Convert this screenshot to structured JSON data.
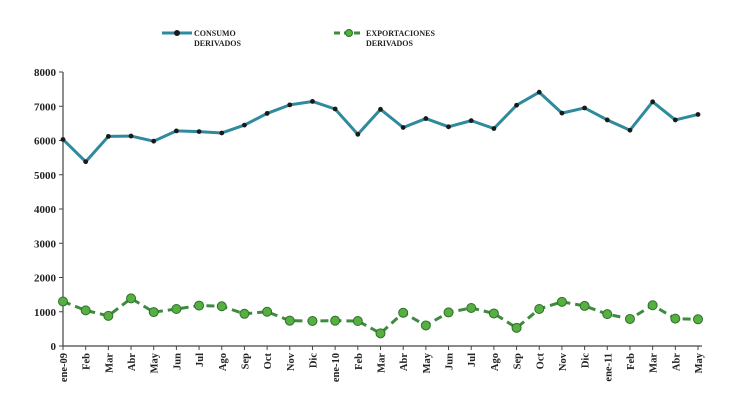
{
  "chart_data": {
    "type": "line",
    "categories": [
      "ene-09",
      "Feb",
      "Mar",
      "Abr",
      "May",
      "Jun",
      "Jul",
      "Ago",
      "Sep",
      "Oct",
      "Nov",
      "Dic",
      "ene-10",
      "Feb",
      "Mar",
      "Abr",
      "May",
      "Jun",
      "Jul",
      "Ago",
      "Sep",
      "Oct",
      "Nov",
      "Dic",
      "ene-11",
      "Feb",
      "Mar",
      "Abr",
      "May"
    ],
    "ylim": [
      0,
      8000
    ],
    "yticks": [
      "0",
      "1000",
      "2000",
      "3000",
      "4000",
      "5000",
      "6000",
      "7000",
      "8000"
    ],
    "grid": false,
    "legend_position": "top",
    "series": [
      {
        "name_lines": [
          "CONSUMO",
          "DERIVADOS"
        ],
        "color": "#2e8a9c",
        "marker_color": "#1a1a1a",
        "style": "solid",
        "values": [
          6030,
          5380,
          6120,
          6130,
          5980,
          6280,
          6260,
          6220,
          6450,
          6790,
          7040,
          7140,
          6920,
          6180,
          6910,
          6380,
          6640,
          6400,
          6580,
          6350,
          7030,
          7410,
          6800,
          6950,
          6600,
          6300,
          7130,
          6600,
          6760
        ]
      },
      {
        "name_lines": [
          "EXPORTACIONES",
          "DERIVADOS"
        ],
        "color": "#3e8a3e",
        "marker_color": "#55b040",
        "style": "dashed",
        "values": [
          1300,
          1040,
          880,
          1390,
          990,
          1080,
          1180,
          1160,
          940,
          1000,
          740,
          730,
          740,
          730,
          370,
          970,
          600,
          980,
          1110,
          950,
          530,
          1080,
          1290,
          1170,
          930,
          790,
          1190,
          800,
          780
        ]
      }
    ]
  }
}
